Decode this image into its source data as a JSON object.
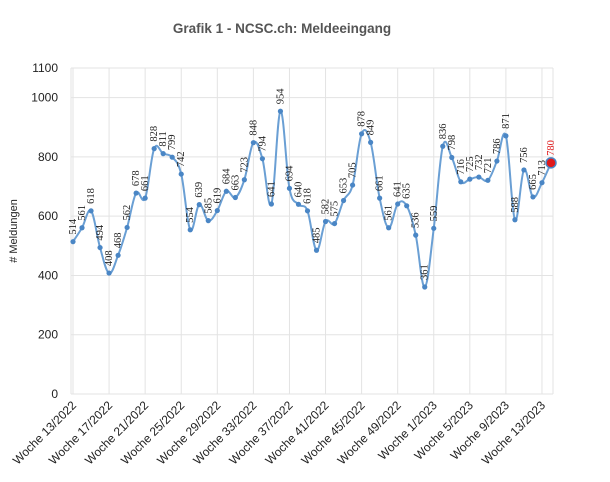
{
  "chart_data": {
    "type": "line",
    "title": "Grafik 1 - NCSC.ch: Meldeeingang",
    "ylabel": "# Meldungen",
    "xlabel": "",
    "ylim": [
      0,
      1100
    ],
    "yticks": [
      0,
      200,
      400,
      600,
      800,
      1000,
      1100
    ],
    "grid": true,
    "legend": "none",
    "x_tick_labels": [
      "Woche 13/2022",
      "Woche 17/2022",
      "Woche 21/2022",
      "Woche 25/2022",
      "Woche 29/2022",
      "Woche 33/2022",
      "Woche 37/2022",
      "Woche 41/2022",
      "Woche 45/2022",
      "Woche 49/2022",
      "Woche 1/2023",
      "Woche 5/2023",
      "Woche 9/2023",
      "Woche 13/2023"
    ],
    "x": [
      "Woche 13/2022",
      "Woche 14/2022",
      "Woche 15/2022",
      "Woche 16/2022",
      "Woche 17/2022",
      "Woche 18/2022",
      "Woche 19/2022",
      "Woche 20/2022",
      "Woche 21/2022",
      "Woche 22/2022",
      "Woche 23/2022",
      "Woche 24/2022",
      "Woche 25/2022",
      "Woche 26/2022",
      "Woche 27/2022",
      "Woche 28/2022",
      "Woche 29/2022",
      "Woche 30/2022",
      "Woche 31/2022",
      "Woche 32/2022",
      "Woche 33/2022",
      "Woche 34/2022",
      "Woche 35/2022",
      "Woche 36/2022",
      "Woche 37/2022",
      "Woche 38/2022",
      "Woche 39/2022",
      "Woche 40/2022",
      "Woche 41/2022",
      "Woche 42/2022",
      "Woche 43/2022",
      "Woche 44/2022",
      "Woche 45/2022",
      "Woche 46/2022",
      "Woche 47/2022",
      "Woche 48/2022",
      "Woche 49/2022",
      "Woche 50/2022",
      "Woche 51/2022",
      "Woche 52/2022",
      "Woche 1/2023",
      "Woche 2/2023",
      "Woche 3/2023",
      "Woche 4/2023",
      "Woche 5/2023",
      "Woche 6/2023",
      "Woche 7/2023",
      "Woche 8/2023",
      "Woche 9/2023",
      "Woche 10/2023",
      "Woche 11/2023",
      "Woche 12/2023",
      "Woche 13/2023",
      "Woche 14/2023"
    ],
    "series": [
      {
        "values": [
          514,
          561,
          618,
          494,
          408,
          468,
          562,
          678,
          661,
          828,
          811,
          799,
          742,
          554,
          639,
          585,
          619,
          684,
          663,
          723,
          848,
          794,
          641,
          954,
          694,
          640,
          618,
          485,
          582,
          575,
          653,
          705,
          878,
          849,
          661,
          561,
          641,
          635,
          536,
          361,
          559,
          836,
          798,
          716,
          725,
          732,
          721,
          786,
          871,
          588,
          756,
          665,
          713,
          780
        ],
        "labels": [
          "514",
          "561",
          "618",
          "494",
          "408",
          "468",
          "562",
          "678",
          "661",
          "828",
          "811",
          "799",
          "742",
          "554",
          "639",
          "585",
          "619",
          "684",
          "663",
          "723",
          "848",
          "794",
          "641",
          "954",
          "694",
          "640",
          "618",
          "485",
          "582",
          "575",
          "653",
          "705",
          "878",
          "849",
          "661",
          "561",
          "641",
          "635",
          "536",
          "361",
          "559",
          "836",
          "798",
          "716",
          "725",
          "732",
          "721",
          "786",
          "871",
          "588",
          "756",
          "665",
          "713",
          "780"
        ]
      }
    ],
    "highlight_index": 53,
    "colors": {
      "line": "#6a9fd4",
      "point": "#4a86c5",
      "highlight": "#e0191b",
      "grid": "#e3e3e3"
    }
  }
}
